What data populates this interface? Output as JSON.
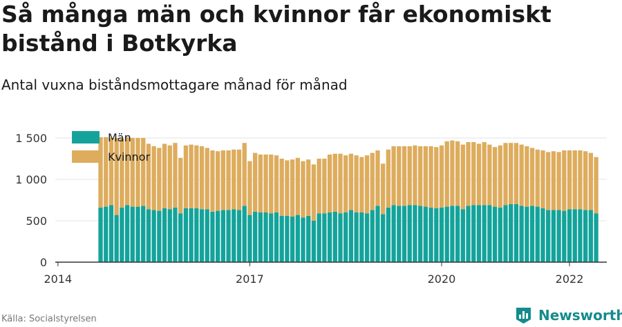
{
  "header": {
    "title": "Så många män och kvinnor får ekonomiskt bistånd i Botkyrka",
    "subtitle": "Antal vuxna biståndsmottagare månad för månad"
  },
  "footer": {
    "source": "Källa: Socialstyrelsen",
    "brand": "Newsworthy"
  },
  "colors": {
    "men": "#14a39a",
    "women": "#ddac5d",
    "grid": "#e3e3e3",
    "axis": "#333333",
    "brand": "#148b8c"
  },
  "icons": {
    "brand": "newsworthy-logo-icon"
  },
  "chart_data": {
    "type": "bar",
    "stacked": true,
    "y_ticks": [
      0,
      500,
      1000,
      1500
    ],
    "y_tick_labels": [
      "0",
      "500",
      "1 000",
      "1 500"
    ],
    "ylim": [
      0,
      1600
    ],
    "x_ticks": [
      "2014",
      "2017",
      "2020",
      "2022"
    ],
    "x_range": [
      "2014-01",
      "2022-12"
    ],
    "legend": {
      "position": "top-left"
    },
    "categories": [
      "2014-09",
      "2014-10",
      "2014-11",
      "2014-12",
      "2015-01",
      "2015-02",
      "2015-03",
      "2015-04",
      "2015-05",
      "2015-06",
      "2015-07",
      "2015-08",
      "2015-09",
      "2015-10",
      "2015-11",
      "2015-12",
      "2016-01",
      "2016-02",
      "2016-03",
      "2016-04",
      "2016-05",
      "2016-06",
      "2016-07",
      "2016-08",
      "2016-09",
      "2016-10",
      "2016-11",
      "2016-12",
      "2017-01",
      "2017-02",
      "2017-03",
      "2017-04",
      "2017-05",
      "2017-06",
      "2017-07",
      "2017-08",
      "2017-09",
      "2017-10",
      "2017-11",
      "2017-12",
      "2018-01",
      "2018-02",
      "2018-03",
      "2018-04",
      "2018-05",
      "2018-06",
      "2018-07",
      "2018-08",
      "2018-09",
      "2018-10",
      "2018-11",
      "2018-12",
      "2019-01",
      "2019-02",
      "2019-03",
      "2019-04",
      "2019-05",
      "2019-06",
      "2019-07",
      "2019-08",
      "2019-09",
      "2019-10",
      "2019-11",
      "2019-12",
      "2020-01",
      "2020-02",
      "2020-03",
      "2020-04",
      "2020-05",
      "2020-06",
      "2020-07",
      "2020-08",
      "2020-09",
      "2020-10",
      "2020-11",
      "2020-12",
      "2021-01",
      "2021-02",
      "2021-03",
      "2021-04",
      "2021-05",
      "2021-06",
      "2021-07",
      "2021-08",
      "2021-09",
      "2021-10",
      "2021-11",
      "2021-12",
      "2022-01",
      "2022-02",
      "2022-03",
      "2022-04",
      "2022-05",
      "2022-06"
    ],
    "series": [
      {
        "name": "Män",
        "values": [
          660,
          670,
          690,
          570,
          660,
          690,
          670,
          670,
          680,
          640,
          630,
          620,
          650,
          640,
          660,
          590,
          650,
          650,
          650,
          640,
          640,
          610,
          620,
          630,
          630,
          640,
          630,
          680,
          570,
          610,
          600,
          600,
          590,
          600,
          560,
          560,
          550,
          570,
          540,
          560,
          500,
          590,
          590,
          600,
          610,
          590,
          600,
          630,
          600,
          600,
          590,
          630,
          680,
          580,
          660,
          690,
          680,
          680,
          690,
          690,
          680,
          670,
          660,
          650,
          660,
          670,
          680,
          680,
          640,
          680,
          690,
          690,
          690,
          690,
          670,
          660,
          690,
          700,
          700,
          680,
          670,
          680,
          670,
          650,
          630,
          630,
          630,
          620,
          640,
          640,
          640,
          630,
          630,
          590
        ]
      },
      {
        "name": "Kvinnor",
        "values": [
          850,
          840,
          810,
          930,
          830,
          820,
          830,
          830,
          820,
          790,
          770,
          760,
          780,
          770,
          780,
          670,
          760,
          770,
          760,
          760,
          740,
          740,
          720,
          720,
          720,
          720,
          730,
          760,
          650,
          710,
          700,
          700,
          710,
          690,
          690,
          670,
          690,
          690,
          680,
          680,
          680,
          660,
          660,
          700,
          700,
          720,
          690,
          680,
          690,
          670,
          700,
          690,
          670,
          610,
          700,
          710,
          720,
          720,
          710,
          720,
          720,
          730,
          740,
          740,
          750,
          790,
          790,
          780,
          780,
          770,
          760,
          740,
          760,
          730,
          720,
          750,
          750,
          740,
          740,
          740,
          730,
          700,
          690,
          700,
          700,
          710,
          700,
          730,
          710,
          710,
          710,
          710,
          690,
          680
        ]
      }
    ]
  }
}
